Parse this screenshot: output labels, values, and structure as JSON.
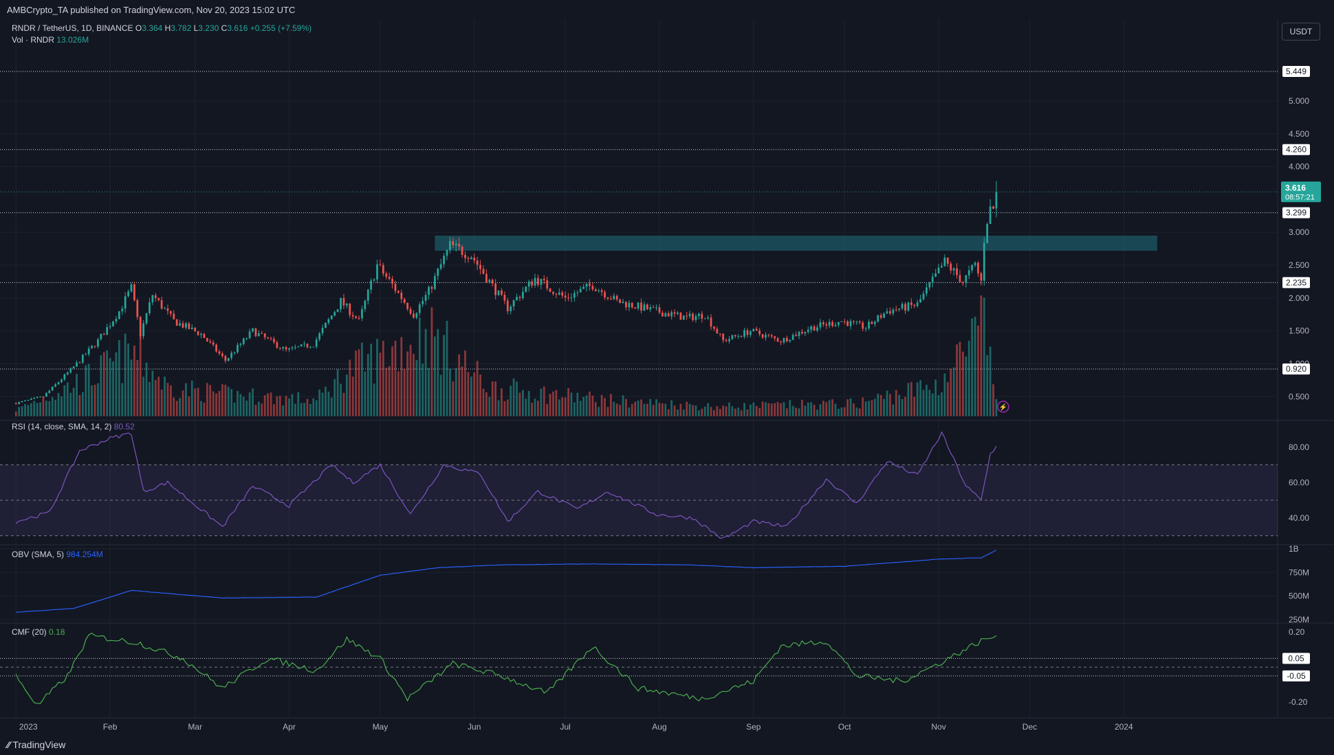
{
  "publisher_line": "AMBCrypto_TA published on TradingView.com, Nov 20, 2023 15:02 UTC",
  "currency_button": "USDT",
  "footer_logo": "TradingView",
  "price_legend": {
    "symbol": "RNDR / TetherUS, 1D, BINANCE",
    "o_label": "O",
    "o": "3.364",
    "h_label": "H",
    "h": "3.782",
    "l_label": "L",
    "l": "3.230",
    "c_label": "C",
    "c": "3.616",
    "change": "+0.255 (+7.59%)",
    "vol_label": "Vol · RNDR",
    "vol": "13.026M"
  },
  "rsi_legend": {
    "label": "RSI (14, close, SMA, 14, 2)",
    "value": "80.52"
  },
  "obv_legend": {
    "label": "OBV (SMA, 5)",
    "value": "984.254M"
  },
  "cmf_legend": {
    "label": "CMF (20)",
    "value": "0.18"
  },
  "price_badge": {
    "value": "3.616",
    "countdown": "08:57:21"
  },
  "colors": {
    "background": "#131722",
    "up": "#26a69a",
    "down": "#ef5350",
    "rsi": "#7e57c2",
    "obv": "#2962ff",
    "cmf": "#4caf50",
    "zone": "#1c5a66"
  },
  "chart_data": [
    {
      "type": "candlestick",
      "name": "RNDR / TetherUS, 1D, BINANCE",
      "y_ticks": [
        "5.000",
        "4.500",
        "4.000",
        "3.000",
        "2.500",
        "2.000",
        "1.500",
        "1.000",
        "0.500"
      ],
      "ylim": [
        0.2,
        5.7
      ],
      "horizontal_levels": [
        "5.449",
        "4.260",
        "3.299",
        "2.235",
        "0.920"
      ],
      "supply_zone": {
        "from_date": "2023-05-19",
        "to_date": "2024-01-12",
        "low": 2.72,
        "high": 2.95
      },
      "x_ticks": [
        "2023",
        "Feb",
        "Mar",
        "Apr",
        "May",
        "Jun",
        "Jul",
        "Aug",
        "Sep",
        "Oct",
        "Nov",
        "Dec",
        "2024"
      ],
      "xlim": [
        "2022-12-29",
        "2024-02-20"
      ],
      "key_points": [
        {
          "date": "2023-01-01",
          "close": 0.4
        },
        {
          "date": "2023-01-10",
          "close": 0.5
        },
        {
          "date": "2023-01-20",
          "close": 0.95
        },
        {
          "date": "2023-01-28",
          "close": 1.35
        },
        {
          "date": "2023-02-04",
          "close": 1.8
        },
        {
          "date": "2023-02-08",
          "close": 2.15
        },
        {
          "date": "2023-02-11",
          "close": 1.45
        },
        {
          "date": "2023-02-15",
          "close": 2.05
        },
        {
          "date": "2023-02-22",
          "close": 1.65
        },
        {
          "date": "2023-03-03",
          "close": 1.45
        },
        {
          "date": "2023-03-11",
          "close": 1.05
        },
        {
          "date": "2023-03-20",
          "close": 1.5
        },
        {
          "date": "2023-03-31",
          "close": 1.2
        },
        {
          "date": "2023-04-09",
          "close": 1.3
        },
        {
          "date": "2023-04-18",
          "close": 1.95
        },
        {
          "date": "2023-04-24",
          "close": 1.65
        },
        {
          "date": "2023-04-30",
          "close": 2.5
        },
        {
          "date": "2023-05-05",
          "close": 2.2
        },
        {
          "date": "2023-05-12",
          "close": 1.75
        },
        {
          "date": "2023-05-17",
          "close": 2.1
        },
        {
          "date": "2023-05-24",
          "close": 2.8
        },
        {
          "date": "2023-05-31",
          "close": 2.65
        },
        {
          "date": "2023-06-06",
          "close": 2.25
        },
        {
          "date": "2023-06-12",
          "close": 1.85
        },
        {
          "date": "2023-06-21",
          "close": 2.3
        },
        {
          "date": "2023-07-01",
          "close": 2.0
        },
        {
          "date": "2023-07-10",
          "close": 2.2
        },
        {
          "date": "2023-07-18",
          "close": 1.95
        },
        {
          "date": "2023-07-31",
          "close": 1.8
        },
        {
          "date": "2023-08-10",
          "close": 1.7
        },
        {
          "date": "2023-08-16",
          "close": 1.75
        },
        {
          "date": "2023-08-22",
          "close": 1.35
        },
        {
          "date": "2023-08-31",
          "close": 1.5
        },
        {
          "date": "2023-09-10",
          "close": 1.35
        },
        {
          "date": "2023-09-20",
          "close": 1.55
        },
        {
          "date": "2023-09-30",
          "close": 1.65
        },
        {
          "date": "2023-10-08",
          "close": 1.55
        },
        {
          "date": "2023-10-15",
          "close": 1.8
        },
        {
          "date": "2023-10-25",
          "close": 1.9
        },
        {
          "date": "2023-11-03",
          "close": 2.55
        },
        {
          "date": "2023-11-09",
          "close": 2.25
        },
        {
          "date": "2023-11-13",
          "close": 2.5
        },
        {
          "date": "2023-11-15",
          "close": 2.25
        },
        {
          "date": "2023-11-16",
          "close": 2.9
        },
        {
          "date": "2023-11-17",
          "close": 3.2
        },
        {
          "date": "2023-11-18",
          "close": 3.35
        },
        {
          "date": "2023-11-19",
          "close": 3.36
        },
        {
          "date": "2023-11-20",
          "open": 3.364,
          "high": 3.782,
          "low": 3.23,
          "close": 3.616
        }
      ],
      "volume_key_points": [
        {
          "date": "2023-01-01",
          "value": 2
        },
        {
          "date": "2023-01-25",
          "value": 12
        },
        {
          "date": "2023-02-09",
          "value": 20
        },
        {
          "date": "2023-02-20",
          "value": 9
        },
        {
          "date": "2023-03-10",
          "value": 7
        },
        {
          "date": "2023-04-10",
          "value": 5
        },
        {
          "date": "2023-04-20",
          "value": 14
        },
        {
          "date": "2023-05-17",
          "value": 26
        },
        {
          "date": "2023-06-06",
          "value": 9
        },
        {
          "date": "2023-07-15",
          "value": 5
        },
        {
          "date": "2023-08-20",
          "value": 3
        },
        {
          "date": "2023-10-05",
          "value": 4
        },
        {
          "date": "2023-11-01",
          "value": 10
        },
        {
          "date": "2023-11-16",
          "value": 28
        },
        {
          "date": "2023-11-20",
          "value": 5
        }
      ]
    },
    {
      "type": "line",
      "name": "RSI (14, close, SMA, 14, 2)",
      "y_ticks": [
        "80.00",
        "60.00",
        "40.00"
      ],
      "ylim": [
        26,
        92
      ],
      "bands": [
        70,
        50,
        30
      ],
      "key_points": [
        {
          "date": "2023-01-01",
          "value": 38
        },
        {
          "date": "2023-01-12",
          "value": 43
        },
        {
          "date": "2023-01-22",
          "value": 78
        },
        {
          "date": "2023-02-01",
          "value": 85
        },
        {
          "date": "2023-02-08",
          "value": 88
        },
        {
          "date": "2023-02-12",
          "value": 55
        },
        {
          "date": "2023-02-20",
          "value": 60
        },
        {
          "date": "2023-03-10",
          "value": 35
        },
        {
          "date": "2023-03-20",
          "value": 58
        },
        {
          "date": "2023-04-01",
          "value": 47
        },
        {
          "date": "2023-04-15",
          "value": 70
        },
        {
          "date": "2023-04-22",
          "value": 60
        },
        {
          "date": "2023-05-01",
          "value": 70
        },
        {
          "date": "2023-05-11",
          "value": 42
        },
        {
          "date": "2023-05-22",
          "value": 70
        },
        {
          "date": "2023-06-03",
          "value": 65
        },
        {
          "date": "2023-06-12",
          "value": 38
        },
        {
          "date": "2023-06-22",
          "value": 55
        },
        {
          "date": "2023-07-05",
          "value": 45
        },
        {
          "date": "2023-07-15",
          "value": 55
        },
        {
          "date": "2023-07-31",
          "value": 42
        },
        {
          "date": "2023-08-12",
          "value": 40
        },
        {
          "date": "2023-08-22",
          "value": 28
        },
        {
          "date": "2023-09-01",
          "value": 38
        },
        {
          "date": "2023-09-12",
          "value": 35
        },
        {
          "date": "2023-09-25",
          "value": 62
        },
        {
          "date": "2023-10-05",
          "value": 48
        },
        {
          "date": "2023-10-15",
          "value": 72
        },
        {
          "date": "2023-10-25",
          "value": 64
        },
        {
          "date": "2023-11-02",
          "value": 88
        },
        {
          "date": "2023-11-10",
          "value": 58
        },
        {
          "date": "2023-11-15",
          "value": 50
        },
        {
          "date": "2023-11-18",
          "value": 76
        },
        {
          "date": "2023-11-20",
          "value": 80.52
        }
      ]
    },
    {
      "type": "line",
      "name": "OBV (SMA, 5)",
      "y_ticks": [
        "1B",
        "750M",
        "500M",
        "250M"
      ],
      "ylim": [
        230,
        1020
      ],
      "unit": "M",
      "key_points": [
        {
          "date": "2023-01-01",
          "value": 330
        },
        {
          "date": "2023-01-20",
          "value": 370
        },
        {
          "date": "2023-02-08",
          "value": 560
        },
        {
          "date": "2023-03-10",
          "value": 480
        },
        {
          "date": "2023-04-10",
          "value": 490
        },
        {
          "date": "2023-05-01",
          "value": 720
        },
        {
          "date": "2023-05-20",
          "value": 800
        },
        {
          "date": "2023-06-10",
          "value": 830
        },
        {
          "date": "2023-07-10",
          "value": 840
        },
        {
          "date": "2023-08-10",
          "value": 830
        },
        {
          "date": "2023-09-01",
          "value": 800
        },
        {
          "date": "2023-10-01",
          "value": 815
        },
        {
          "date": "2023-11-01",
          "value": 890
        },
        {
          "date": "2023-11-15",
          "value": 905
        },
        {
          "date": "2023-11-20",
          "value": 984.254
        }
      ]
    },
    {
      "type": "line",
      "name": "CMF (20)",
      "y_ticks": [
        "0.20",
        "-0.20"
      ],
      "ylim": [
        -0.29,
        0.24
      ],
      "horizontal_levels": [
        "0.05",
        "-0.05"
      ],
      "key_points": [
        {
          "date": "2023-01-01",
          "value": -0.05
        },
        {
          "date": "2023-01-08",
          "value": -0.22
        },
        {
          "date": "2023-01-18",
          "value": -0.05
        },
        {
          "date": "2023-01-25",
          "value": 0.18
        },
        {
          "date": "2023-02-10",
          "value": 0.14
        },
        {
          "date": "2023-02-25",
          "value": 0.05
        },
        {
          "date": "2023-03-10",
          "value": -0.12
        },
        {
          "date": "2023-03-25",
          "value": 0.05
        },
        {
          "date": "2023-04-10",
          "value": -0.02
        },
        {
          "date": "2023-04-20",
          "value": 0.16
        },
        {
          "date": "2023-05-01",
          "value": 0.05
        },
        {
          "date": "2023-05-10",
          "value": -0.18
        },
        {
          "date": "2023-05-25",
          "value": 0.02
        },
        {
          "date": "2023-06-10",
          "value": -0.05
        },
        {
          "date": "2023-06-25",
          "value": -0.15
        },
        {
          "date": "2023-07-10",
          "value": 0.12
        },
        {
          "date": "2023-07-25",
          "value": -0.12
        },
        {
          "date": "2023-08-15",
          "value": -0.18
        },
        {
          "date": "2023-09-01",
          "value": -0.08
        },
        {
          "date": "2023-09-10",
          "value": 0.12
        },
        {
          "date": "2023-09-25",
          "value": 0.15
        },
        {
          "date": "2023-10-05",
          "value": -0.05
        },
        {
          "date": "2023-10-20",
          "value": -0.08
        },
        {
          "date": "2023-11-01",
          "value": 0.02
        },
        {
          "date": "2023-11-15",
          "value": 0.15
        },
        {
          "date": "2023-11-20",
          "value": 0.18
        }
      ]
    }
  ]
}
